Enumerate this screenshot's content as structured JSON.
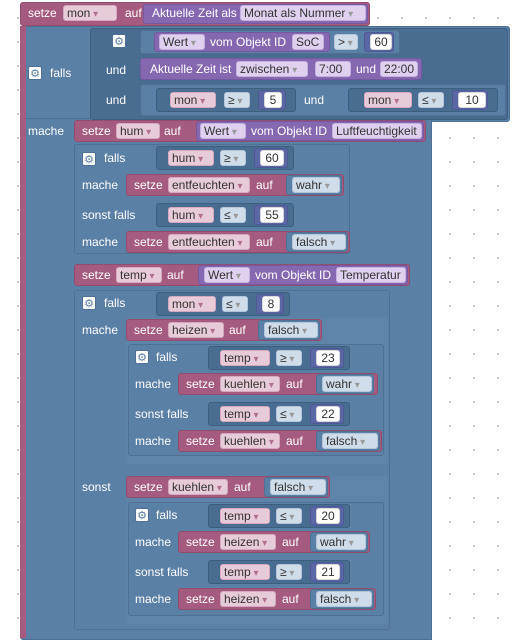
{
  "kw": {
    "set": "setze",
    "to": "auf",
    "if": "falls",
    "and": "und",
    "do": "mache",
    "elseif": "sonst falls",
    "else": "sonst",
    "from_obj": "vom Objekt ID",
    "between": "zwischen",
    "and2": "und"
  },
  "b1": {
    "var": "mon",
    "time_prefix": "Aktuelle Zeit als",
    "time_fmt": "Monat als Nummer"
  },
  "c1": {
    "val": "Wert",
    "obj": "SoC",
    "op": ">",
    "num": "60"
  },
  "c2": {
    "prefix": "Aktuelle Zeit ist",
    "op": "zwischen",
    "t1": "7:00",
    "t2": "22:00"
  },
  "c3": {
    "var1": "mon",
    "op1": "≥",
    "n1": "5",
    "var2": "mon",
    "op2": "≤",
    "n2": "10"
  },
  "hum_set": {
    "var": "hum",
    "val": "Wert",
    "obj": "Luftfeuchtigkeit"
  },
  "hum_if1": {
    "var": "hum",
    "op": "≥",
    "num": "60",
    "target": "entfeuchten",
    "bool": "wahr"
  },
  "hum_if2": {
    "var": "hum",
    "op": "≤",
    "num": "55",
    "target": "entfeuchten",
    "bool": "falsch"
  },
  "temp_set": {
    "var": "temp",
    "val": "Wert",
    "obj": "Temperatur"
  },
  "mon_if": {
    "var": "mon",
    "op": "≤",
    "num": "8",
    "target": "heizen",
    "bool": "falsch"
  },
  "t_if1": {
    "var": "temp",
    "op": "≥",
    "num": "23",
    "target": "kuehlen",
    "bool": "wahr"
  },
  "t_if2": {
    "var": "temp",
    "op": "≤",
    "num": "22",
    "target": "kuehlen",
    "bool": "falsch"
  },
  "else_set": {
    "target": "kuehlen",
    "bool": "falsch"
  },
  "t_if3": {
    "var": "temp",
    "op": "≤",
    "num": "20",
    "target": "heizen",
    "bool": "wahr"
  },
  "t_if4": {
    "var": "temp",
    "op": "≥",
    "num": "21",
    "target": "heizen",
    "bool": "falsch"
  },
  "gear_icon": "gear-icon",
  "colors": {
    "variable": "#a55b80",
    "logic": "#5b80a5",
    "math": "#5b67a5",
    "text": "#8e6bb3"
  }
}
